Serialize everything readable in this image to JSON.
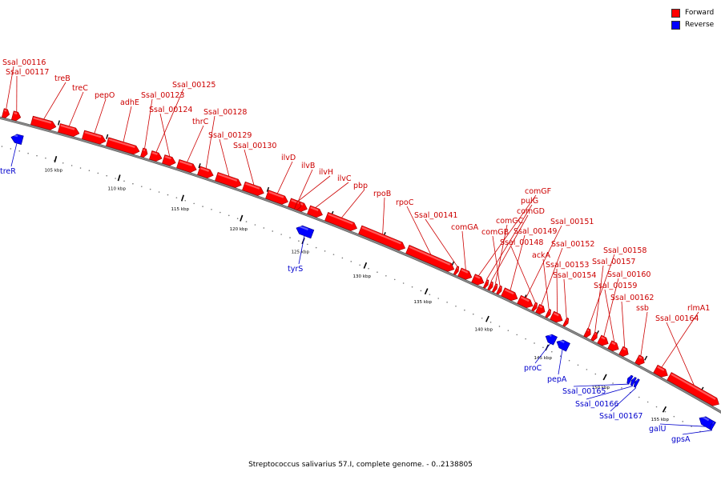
{
  "caption": "Streptococcus salivarius 57.I, complete genome. - 0..2138805",
  "legend": [
    {
      "label": "Forward",
      "color": "#ff0000"
    },
    {
      "label": "Reverse",
      "color": "#0000ff"
    }
  ],
  "colors": {
    "forward": "#ff0000",
    "reverse": "#0000ff",
    "backbone": "#888888",
    "label_forward": "#cc0000",
    "label_reverse": "#0000cc"
  },
  "ticks": [
    "105 kbp",
    "110 kbp",
    "115 kbp",
    "120 kbp",
    "125 kbp",
    "130 kbp",
    "135 kbp",
    "140 kbp",
    "145 kbp",
    "150 kbp",
    "155 kbp"
  ],
  "forward_labels": [
    "Ssal_00116",
    "Ssal_00117",
    "treB",
    "treC",
    "pepO",
    "adhE",
    "Ssal_00123",
    "Ssal_00125",
    "Ssal_00124",
    "thrC",
    "Ssal_00128",
    "Ssal_00129",
    "Ssal_00130",
    "ilvD",
    "ilvB",
    "ilvH",
    "ilvC",
    "pbp",
    "rpoB",
    "rpoC",
    "Ssal_00141",
    "comGA",
    "comGF",
    "pulG",
    "comGD",
    "comGC",
    "comGB",
    "Ssal_00149",
    "Ssal_00151",
    "Ssal_00148",
    "Ssal_00152",
    "ackA",
    "Ssal_00153",
    "Ssal_00154",
    "Ssal_00158",
    "Ssal_00157",
    "Ssal_00160",
    "Ssal_00159",
    "Ssal_00162",
    "ssb",
    "rlmA1",
    "Ssal_00164"
  ],
  "reverse_labels": [
    "treR",
    "tyrS",
    "proC",
    "pepA",
    "Ssal_00165",
    "Ssal_00166",
    "Ssal_00167",
    "galU",
    "gpsA"
  ]
}
